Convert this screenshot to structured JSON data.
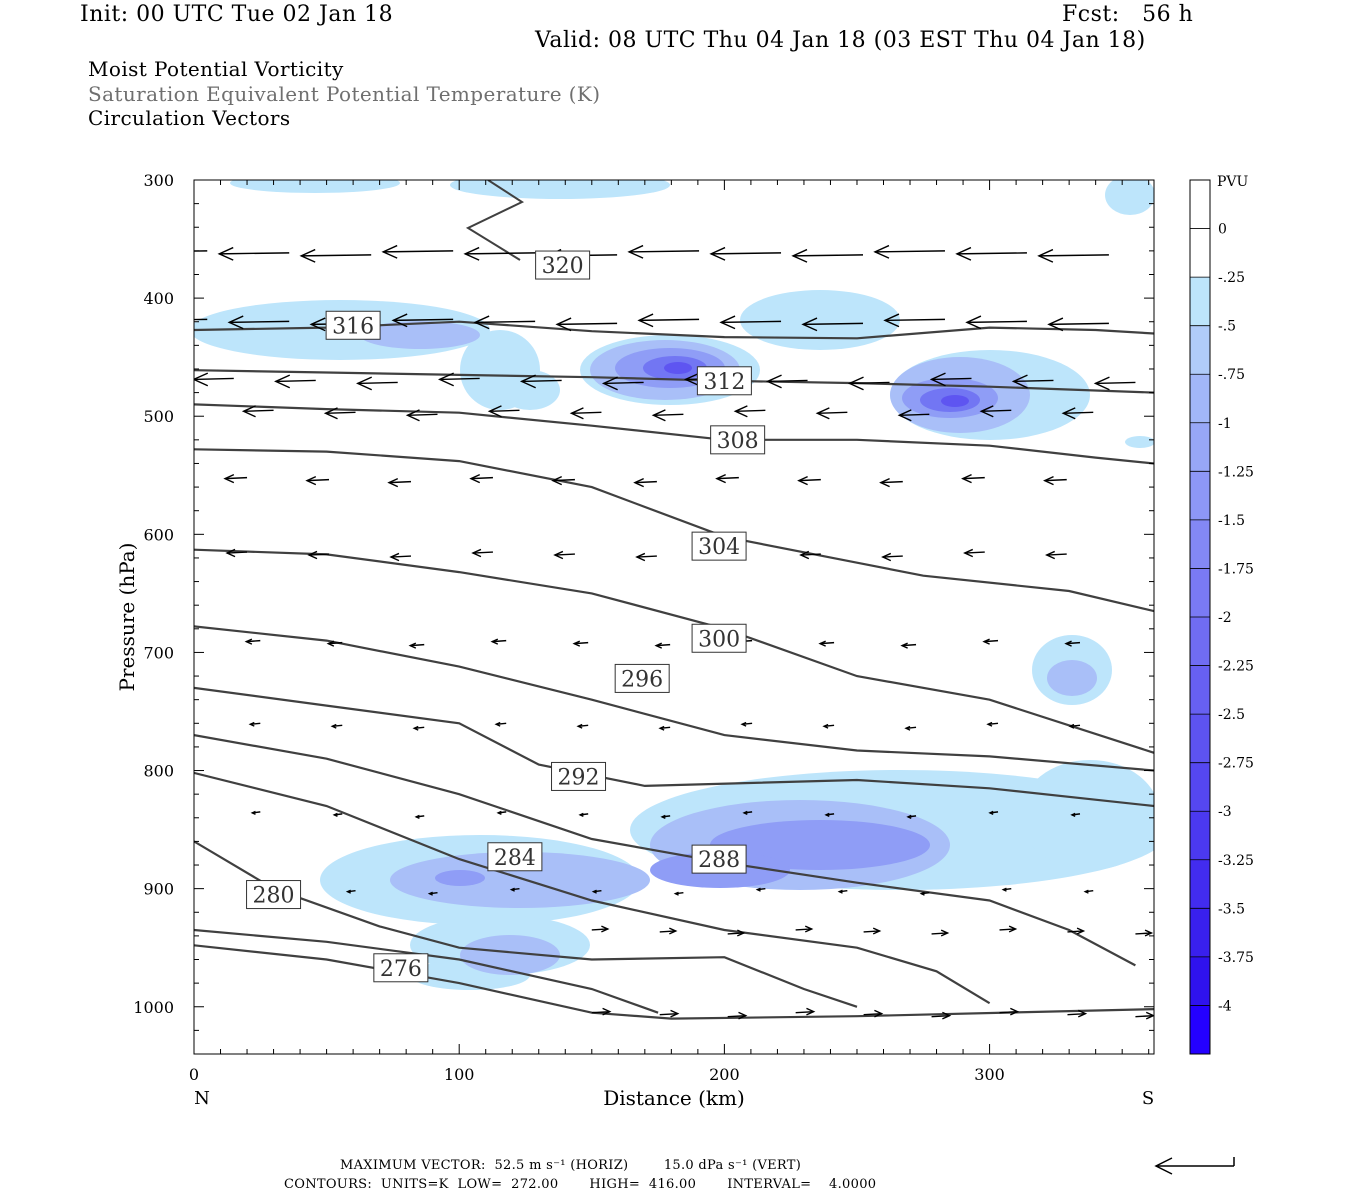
{
  "header": {
    "init": "Init: 00 UTC Tue 02 Jan 18",
    "fcst": "Fcst:   56 h",
    "valid": "Valid: 08 UTC Thu 04 Jan 18 (03 EST Thu 04 Jan 18)"
  },
  "fields": {
    "f1": "Moist Potential Vorticity",
    "f2": "Saturation Equivalent Potential Temperature (K)",
    "f3": "Circulation Vectors"
  },
  "footer": {
    "line1": "MAXIMUM VECTOR:  52.5 m s⁻¹ (HORIZ)        15.0 dPa s⁻¹ (VERT)",
    "line2": "CONTOURS:  UNITS=K  LOW=  272.00       HIGH=  416.00       INTERVAL=    4.0000"
  },
  "colors": {
    "contour": "#404040",
    "vector": "#000000"
  },
  "chart_data": {
    "type": "contour",
    "xlabel": "Distance (km)",
    "ylabel": "Pressure (hPa)",
    "xlim": [
      0,
      362
    ],
    "ylim": [
      1040,
      300
    ],
    "x_ticks": [
      0,
      100,
      200,
      300
    ],
    "y_ticks": [
      300,
      400,
      500,
      600,
      700,
      800,
      900,
      1000
    ],
    "x_end_labels": {
      "left": "N",
      "right": "S"
    },
    "colorbar": {
      "unit": "PVU",
      "labels": [
        "0",
        "-.25",
        "-.5",
        "-.75",
        "-1",
        "-1.25",
        "-1.5",
        "-1.75",
        "-2",
        "-2.25",
        "-2.5",
        "-2.75",
        "-3",
        "-3.25",
        "-3.5",
        "-3.75",
        "-4"
      ],
      "colors": [
        "#ffffff",
        "#ffffff",
        "#bde5fb",
        "#b0ccf9",
        "#a2b7f8",
        "#97a7f7",
        "#8d97f6",
        "#8388f5",
        "#7a7af4",
        "#706cf3",
        "#6760f2",
        "#5d53f1",
        "#5547f1",
        "#4b39f0",
        "#422cef",
        "#3920ee",
        "#2f12ee",
        "#2400ff"
      ]
    },
    "contour_labels": [
      {
        "value": "320",
        "x": 139,
        "p": 372
      },
      {
        "value": "316",
        "x": 60,
        "p": 423
      },
      {
        "value": "312",
        "x": 200,
        "p": 470
      },
      {
        "value": "308",
        "x": 205,
        "p": 520
      },
      {
        "value": "304",
        "x": 198,
        "p": 610
      },
      {
        "value": "300",
        "x": 198,
        "p": 688
      },
      {
        "value": "296",
        "x": 169,
        "p": 722
      },
      {
        "value": "292",
        "x": 145,
        "p": 805
      },
      {
        "value": "288",
        "x": 198,
        "p": 875
      },
      {
        "value": "284",
        "x": 121,
        "p": 873
      },
      {
        "value": "280",
        "x": 30,
        "p": 905
      },
      {
        "value": "276",
        "x": 78,
        "p": 967
      }
    ],
    "theta_e_contours": [
      [
        [
          0,
          427
        ],
        [
          50,
          425
        ],
        [
          100,
          420
        ],
        [
          150,
          428
        ],
        [
          200,
          433
        ],
        [
          250,
          434
        ],
        [
          300,
          425
        ],
        [
          340,
          427
        ],
        [
          362,
          430
        ]
      ],
      [
        [
          0,
          461
        ],
        [
          50,
          463
        ],
        [
          100,
          465
        ],
        [
          150,
          467
        ],
        [
          200,
          470
        ],
        [
          250,
          472
        ],
        [
          300,
          475
        ],
        [
          362,
          480
        ]
      ],
      [
        [
          0,
          490
        ],
        [
          50,
          494
        ],
        [
          100,
          497
        ],
        [
          150,
          508
        ],
        [
          200,
          520
        ],
        [
          250,
          520
        ],
        [
          300,
          525
        ],
        [
          340,
          535
        ],
        [
          362,
          540
        ]
      ],
      [
        [
          0,
          528
        ],
        [
          50,
          530
        ],
        [
          100,
          538
        ],
        [
          150,
          560
        ],
        [
          200,
          602
        ],
        [
          250,
          624
        ],
        [
          275,
          635
        ],
        [
          330,
          648
        ],
        [
          362,
          665
        ]
      ],
      [
        [
          0,
          613
        ],
        [
          50,
          617
        ],
        [
          100,
          632
        ],
        [
          150,
          650
        ],
        [
          200,
          680
        ],
        [
          250,
          720
        ],
        [
          300,
          740
        ],
        [
          362,
          785
        ]
      ],
      [
        [
          0,
          678
        ],
        [
          50,
          690
        ],
        [
          100,
          712
        ],
        [
          150,
          740
        ],
        [
          200,
          770
        ],
        [
          250,
          783
        ],
        [
          300,
          788
        ],
        [
          362,
          800
        ]
      ],
      [
        [
          0,
          730
        ],
        [
          50,
          745
        ],
        [
          100,
          760
        ],
        [
          130,
          795
        ],
        [
          170,
          813
        ],
        [
          250,
          808
        ],
        [
          300,
          815
        ],
        [
          362,
          830
        ]
      ],
      [
        [
          0,
          770
        ],
        [
          50,
          790
        ],
        [
          100,
          820
        ],
        [
          150,
          858
        ],
        [
          200,
          878
        ],
        [
          250,
          895
        ],
        [
          300,
          910
        ],
        [
          330,
          935
        ],
        [
          355,
          965
        ]
      ],
      [
        [
          0,
          802
        ],
        [
          50,
          830
        ],
        [
          100,
          875
        ],
        [
          150,
          910
        ],
        [
          200,
          935
        ],
        [
          250,
          950
        ],
        [
          280,
          970
        ],
        [
          300,
          997
        ]
      ],
      [
        [
          0,
          860
        ],
        [
          30,
          900
        ],
        [
          70,
          932
        ],
        [
          100,
          950
        ],
        [
          150,
          960
        ],
        [
          200,
          958
        ],
        [
          230,
          985
        ],
        [
          250,
          1000
        ]
      ],
      [
        [
          0,
          935
        ],
        [
          50,
          945
        ],
        [
          100,
          960
        ],
        [
          150,
          985
        ],
        [
          175,
          1005
        ]
      ],
      [
        [
          0,
          948
        ],
        [
          50,
          960
        ],
        [
          100,
          980
        ],
        [
          150,
          1005
        ],
        [
          180,
          1010
        ],
        [
          250,
          1008
        ],
        [
          362,
          1002
        ]
      ]
    ]
  }
}
